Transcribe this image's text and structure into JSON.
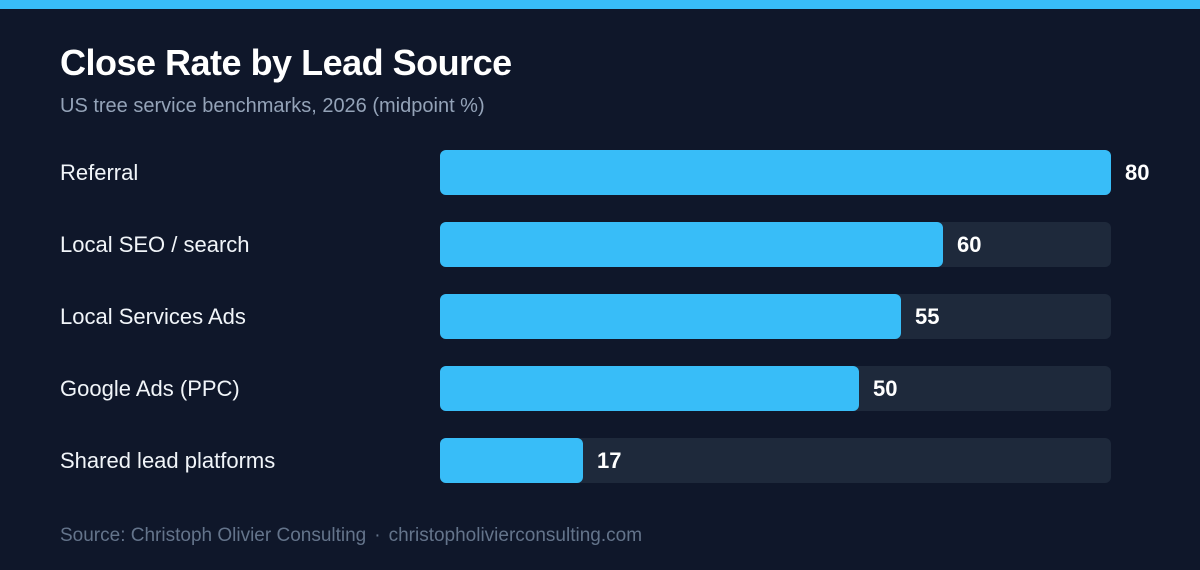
{
  "header": {
    "title": "Close Rate by Lead Source",
    "subtitle": "US tree service benchmarks, 2026 (midpoint %)"
  },
  "footer": {
    "source": "Source: Christoph Olivier Consulting",
    "separator": "·",
    "website": "christopholivierconsulting.com"
  },
  "colors": {
    "background": "#0f172a",
    "accent": "#38bdf8",
    "track": "#1e293b",
    "label": "#f1f5f9",
    "muted": "#94a3b8"
  },
  "chart_data": {
    "type": "bar",
    "orientation": "horizontal",
    "title": "Close Rate by Lead Source",
    "subtitle": "US tree service benchmarks, 2026 (midpoint %)",
    "categories": [
      "Referral",
      "Local SEO / search",
      "Local Services Ads",
      "Google Ads (PPC)",
      "Shared lead platforms"
    ],
    "values": [
      80,
      60,
      55,
      50,
      17
    ],
    "xlim": [
      0,
      80
    ],
    "grid": false,
    "legend": "none",
    "data_labels": true
  }
}
